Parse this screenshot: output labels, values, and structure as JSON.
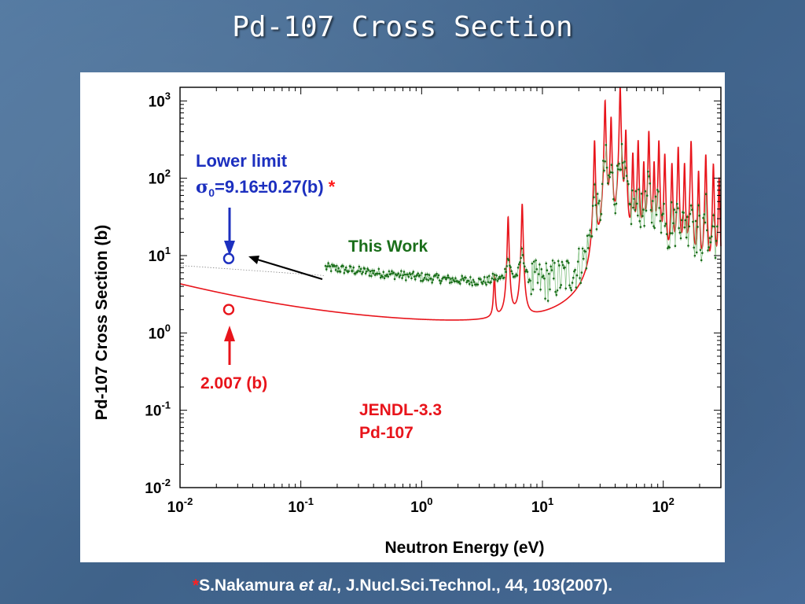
{
  "slide": {
    "title": "Pd-107 Cross Section"
  },
  "citation": {
    "star": "*",
    "author": "S.Nakamura ",
    "etal": "et al",
    "rest": "., J.Nucl.Sci.Technol., 44, 103(2007)."
  },
  "colors": {
    "jendl": "#e8141b",
    "this_work": "#1a6e1a",
    "lower_limit": "#1c2fbf",
    "arrow": "#000000"
  },
  "chart_data": {
    "type": "line",
    "xlabel": "Neutron Energy (eV)",
    "ylabel": "Pd-107 Cross Section (b)",
    "xscale": "log",
    "yscale": "log",
    "xlim": [
      0.01,
      300
    ],
    "ylim": [
      0.01,
      1500
    ],
    "x_ticks": [
      {
        "base": "10",
        "exp": "-2",
        "value": 0.01
      },
      {
        "base": "10",
        "exp": "-1",
        "value": 0.1
      },
      {
        "base": "10",
        "exp": "0",
        "value": 1
      },
      {
        "base": "10",
        "exp": "1",
        "value": 10
      },
      {
        "base": "10",
        "exp": "2",
        "value": 100
      }
    ],
    "y_ticks": [
      {
        "base": "10",
        "exp": "3",
        "value": 1000
      },
      {
        "base": "10",
        "exp": "2",
        "value": 100
      },
      {
        "base": "10",
        "exp": "1",
        "value": 10
      },
      {
        "base": "10",
        "exp": "0",
        "value": 1
      },
      {
        "base": "10",
        "exp": "-1",
        "value": 0.1
      },
      {
        "base": "10",
        "exp": "-2",
        "value": 0.01
      }
    ],
    "series": [
      {
        "name": "JENDL-3.3 Pd-107",
        "kind": "evaluated",
        "color": "#e8141b",
        "baseline": {
          "x0": 0.0253,
          "y0": 2.007,
          "slope": -0.5
        },
        "resonances": [
          {
            "e": 4.0,
            "peak": 4.0
          },
          {
            "e": 5.2,
            "peak": 30
          },
          {
            "e": 6.8,
            "peak": 45
          },
          {
            "e": 27,
            "peak": 300
          },
          {
            "e": 33,
            "peak": 1000
          },
          {
            "e": 37,
            "peak": 600
          },
          {
            "e": 44,
            "peak": 1500
          },
          {
            "e": 49,
            "peak": 400
          },
          {
            "e": 56,
            "peak": 200
          },
          {
            "e": 62,
            "peak": 300
          },
          {
            "e": 69,
            "peak": 150
          },
          {
            "e": 76,
            "peak": 400
          },
          {
            "e": 84,
            "peak": 150
          },
          {
            "e": 92,
            "peak": 300
          },
          {
            "e": 103,
            "peak": 200
          },
          {
            "e": 118,
            "peak": 150
          },
          {
            "e": 133,
            "peak": 250
          },
          {
            "e": 150,
            "peak": 150
          },
          {
            "e": 170,
            "peak": 300
          },
          {
            "e": 196,
            "peak": 120
          },
          {
            "e": 225,
            "peak": 200
          },
          {
            "e": 260,
            "peak": 150
          },
          {
            "e": 290,
            "peak": 100
          }
        ]
      },
      {
        "name": "This Work",
        "kind": "measured",
        "color": "#1a6e1a",
        "x_range": [
          0.16,
          280
        ],
        "n_points": 420
      }
    ],
    "markers": [
      {
        "name": "Lower limit",
        "x": 0.0253,
        "y": 9.16,
        "color": "#1c2fbf"
      },
      {
        "name": "JENDL thermal",
        "x": 0.0253,
        "y": 2.007,
        "color": "#e8141b"
      }
    ],
    "annotations": {
      "lower_limit_title": "Lower limit",
      "lower_limit_sigma": "σ",
      "lower_limit_sub": "0",
      "lower_limit_value": "=9.16±0.27(b)",
      "lower_limit_star": "*",
      "this_work": "This Work",
      "jendl_value": "2.007 (b)",
      "jendl_line1": "JENDL-3.3",
      "jendl_line2": "Pd-107"
    }
  }
}
